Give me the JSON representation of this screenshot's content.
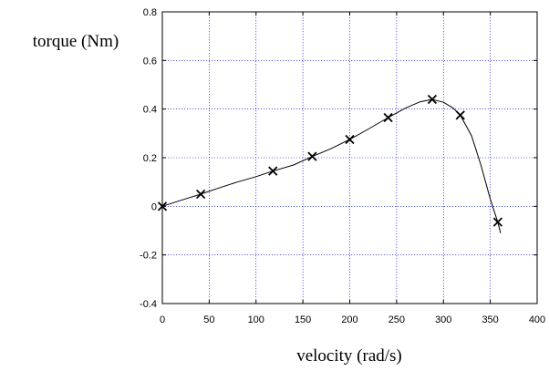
{
  "chart_data": {
    "type": "line",
    "xlabel": "velocity (rad/s)",
    "ylabel": "torque (Nm)",
    "xlim": [
      0,
      400
    ],
    "ylim": [
      -0.4,
      0.8
    ],
    "xticks": [
      0,
      50,
      100,
      150,
      200,
      250,
      300,
      350,
      400
    ],
    "yticks": [
      -0.4,
      -0.2,
      0,
      0.2,
      0.4,
      0.6,
      0.8
    ],
    "ytick_labels": [
      "-0.4",
      "-0.2",
      "0",
      "0.2",
      "0.4",
      "0.6",
      "0.8"
    ],
    "grid": true,
    "series": [
      {
        "style": "markers",
        "marker": "x",
        "x": [
          0,
          41,
          118,
          160,
          200,
          241,
          288,
          318,
          358
        ],
        "y": [
          0.0,
          0.05,
          0.145,
          0.205,
          0.275,
          0.365,
          0.44,
          0.375,
          -0.065
        ]
      },
      {
        "style": "line",
        "x": [
          0,
          20,
          41,
          60,
          80,
          100,
          118,
          140,
          160,
          180,
          200,
          220,
          241,
          260,
          275,
          288,
          300,
          310,
          318,
          330,
          340,
          350,
          358,
          361
        ],
        "y": [
          0.0,
          0.025,
          0.05,
          0.075,
          0.1,
          0.122,
          0.145,
          0.17,
          0.205,
          0.237,
          0.275,
          0.318,
          0.365,
          0.405,
          0.43,
          0.44,
          0.428,
          0.405,
          0.375,
          0.29,
          0.17,
          0.03,
          -0.065,
          -0.11
        ]
      }
    ]
  }
}
